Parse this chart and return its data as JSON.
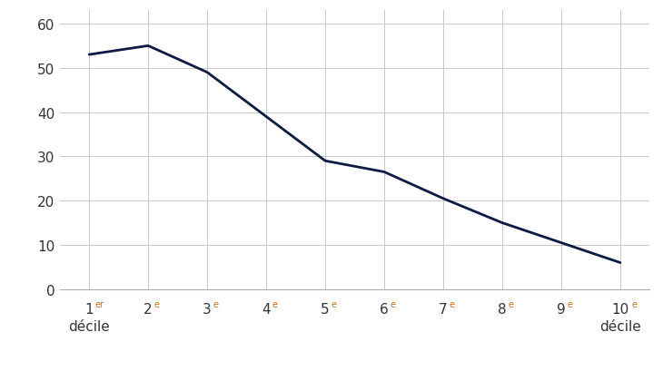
{
  "x": [
    1,
    2,
    3,
    4,
    5,
    6,
    7,
    8,
    9,
    10
  ],
  "y": [
    53,
    55,
    49,
    39,
    29,
    26.5,
    20.5,
    15,
    10.5,
    6
  ],
  "line_color": "#0d1a45",
  "line_width": 2.0,
  "ylim": [
    0,
    63
  ],
  "yticks": [
    0,
    10,
    20,
    30,
    40,
    50,
    60
  ],
  "background_color": "#ffffff",
  "grid_color": "#c8c8c8",
  "tick_label_color": "#333333",
  "label_superscript_color": "#c87020",
  "xlabel_left": "décile",
  "xlabel_right": "décile",
  "figsize": [
    7.3,
    4.1
  ],
  "dpi": 100
}
